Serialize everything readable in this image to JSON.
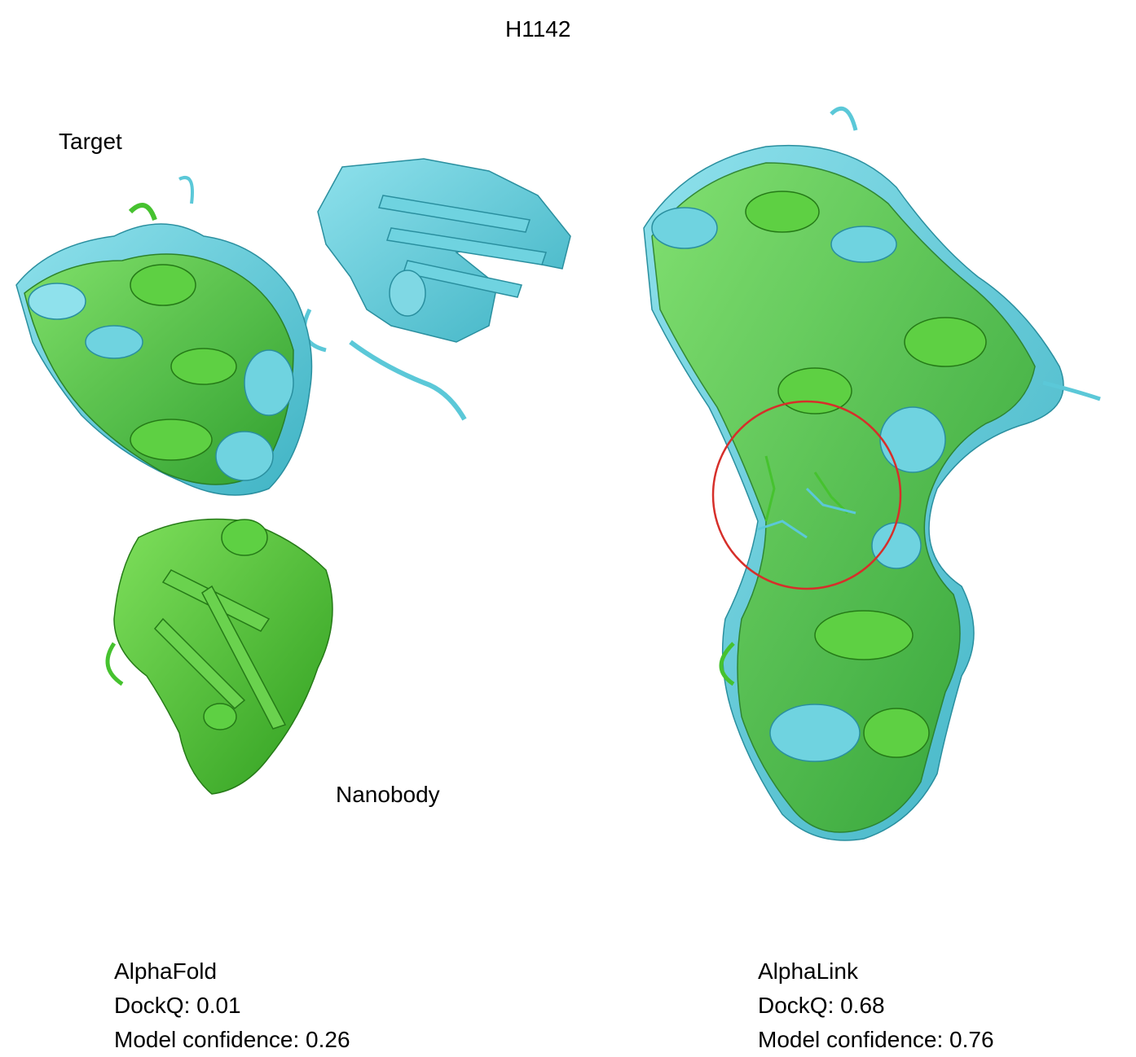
{
  "figure": {
    "title": "H1142",
    "labels": {
      "target": "Target",
      "nanobody": "Nanobody"
    },
    "colors": {
      "reference_structure": "#5bc8d8",
      "predicted_model": "#46c22f",
      "highlight_circle": "#d62f2a"
    },
    "panels": [
      {
        "method": "AlphaFold",
        "dockq": "DockQ: 0.01",
        "confidence": "Model confidence: 0.26"
      },
      {
        "method": "AlphaLink",
        "dockq": "DockQ: 0.68",
        "confidence": "Model confidence: 0.76"
      }
    ]
  }
}
